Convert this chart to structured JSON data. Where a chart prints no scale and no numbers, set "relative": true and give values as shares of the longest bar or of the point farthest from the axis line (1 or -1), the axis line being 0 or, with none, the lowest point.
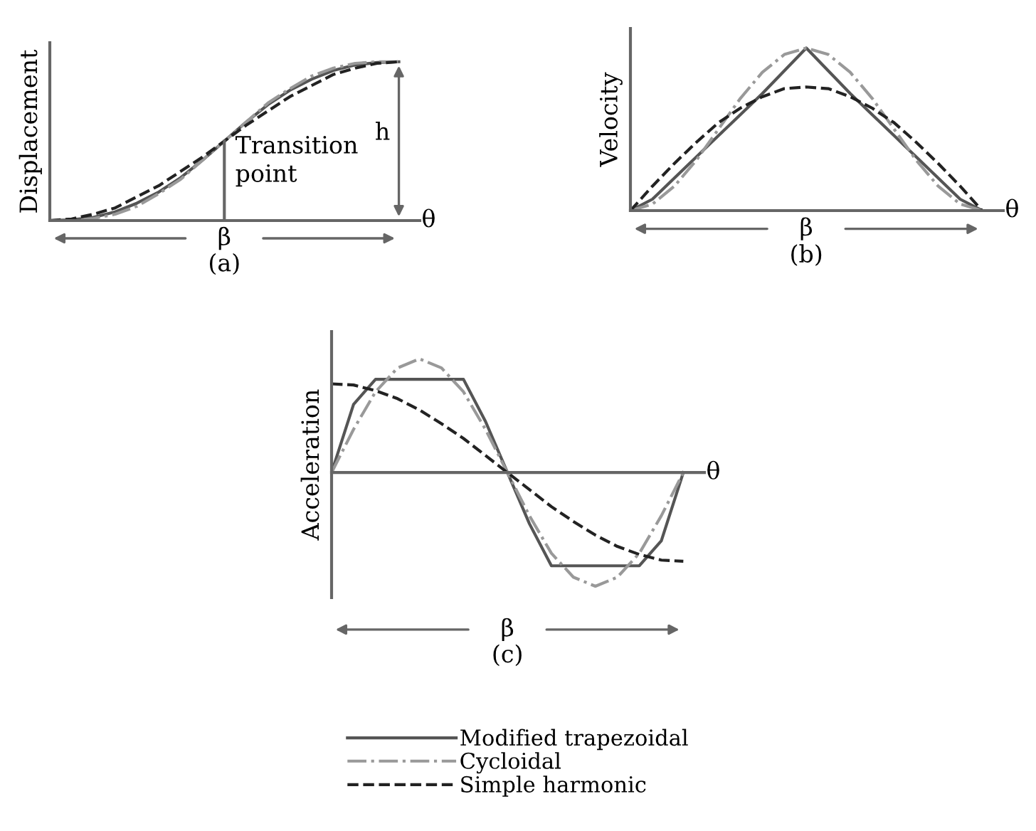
{
  "chart_data": [
    {
      "type": "line",
      "relative": true,
      "title": "(a)",
      "xlabel": "β",
      "ylabel": "Displacement",
      "annotations": [
        "Transition point",
        "h",
        "θ"
      ],
      "legend": false,
      "marker": "none",
      "categories": [
        null,
        null,
        null,
        null,
        null,
        null,
        null,
        null,
        null,
        null,
        null,
        null,
        null,
        null,
        null,
        null,
        null
      ],
      "series": [
        {
          "color": "#555555",
          "line_style": "solid",
          "values": [
            0,
            0.005,
            0.02,
            0.055,
            0.11,
            0.18,
            0.27,
            0.38,
            0.5,
            0.62,
            0.73,
            0.82,
            0.89,
            0.945,
            0.98,
            0.995,
            1
          ]
        },
        {
          "color": "#999999",
          "line_style": "dashdot",
          "values": [
            0,
            0.002,
            0.013,
            0.04,
            0.09,
            0.17,
            0.26,
            0.38,
            0.5,
            0.62,
            0.74,
            0.83,
            0.91,
            0.96,
            0.99,
            1,
            1
          ]
        },
        {
          "color": "#222222",
          "line_style": "dashed",
          "values": [
            0,
            0.01,
            0.04,
            0.08,
            0.15,
            0.22,
            0.31,
            0.4,
            0.5,
            0.6,
            0.69,
            0.78,
            0.85,
            0.92,
            0.96,
            0.99,
            1
          ]
        }
      ]
    },
    {
      "type": "line",
      "relative": true,
      "title": "(b)",
      "xlabel": "β",
      "ylabel": "Velocity",
      "annotations": [
        "θ"
      ],
      "legend": false,
      "marker": "none",
      "categories": [
        null,
        null,
        null,
        null,
        null,
        null,
        null,
        null,
        null,
        null,
        null,
        null,
        null,
        null,
        null,
        null,
        null
      ],
      "series": [
        {
          "color": "#555555",
          "line_style": "solid",
          "values": [
            0,
            0.07,
            0.2,
            0.33,
            0.46,
            0.59,
            0.72,
            0.86,
            1,
            0.86,
            0.72,
            0.59,
            0.46,
            0.33,
            0.2,
            0.07,
            0
          ]
        },
        {
          "color": "#999999",
          "line_style": "dashdot",
          "values": [
            0,
            0.04,
            0.15,
            0.31,
            0.5,
            0.69,
            0.85,
            0.96,
            1,
            0.96,
            0.85,
            0.69,
            0.5,
            0.31,
            0.15,
            0.04,
            0
          ]
        },
        {
          "color": "#222222",
          "line_style": "dashed",
          "values": [
            0,
            0.15,
            0.29,
            0.42,
            0.54,
            0.63,
            0.7,
            0.75,
            0.76,
            0.75,
            0.7,
            0.63,
            0.54,
            0.42,
            0.29,
            0.15,
            0
          ]
        }
      ]
    },
    {
      "type": "line",
      "relative": true,
      "title": "(c)",
      "xlabel": "β",
      "ylabel": "Acceleration",
      "annotations": [
        "θ"
      ],
      "legend": "bottom",
      "marker": "none",
      "categories": [
        null,
        null,
        null,
        null,
        null,
        null,
        null,
        null,
        null,
        null,
        null,
        null,
        null,
        null,
        null,
        null,
        null
      ],
      "series": [
        {
          "name": "Modified trapezoidal",
          "color": "#555555",
          "line_style": "solid",
          "values": [
            0,
            0.6,
            0.82,
            0.82,
            0.82,
            0.82,
            0.82,
            0.45,
            0,
            -0.45,
            -0.82,
            -0.82,
            -0.82,
            -0.82,
            -0.82,
            -0.6,
            0
          ]
        },
        {
          "name": "Cycloidal",
          "color": "#999999",
          "line_style": "dashdot",
          "values": [
            0,
            0.38,
            0.71,
            0.92,
            1,
            0.92,
            0.71,
            0.38,
            0,
            -0.38,
            -0.71,
            -0.92,
            -1,
            -0.92,
            -0.71,
            -0.38,
            0
          ]
        },
        {
          "name": "Simple harmonic",
          "color": "#222222",
          "line_style": "dashed",
          "values": [
            0.78,
            0.77,
            0.72,
            0.65,
            0.55,
            0.43,
            0.3,
            0.15,
            0,
            -0.15,
            -0.3,
            -0.43,
            -0.55,
            -0.65,
            -0.72,
            -0.77,
            -0.78
          ]
        }
      ]
    }
  ]
}
